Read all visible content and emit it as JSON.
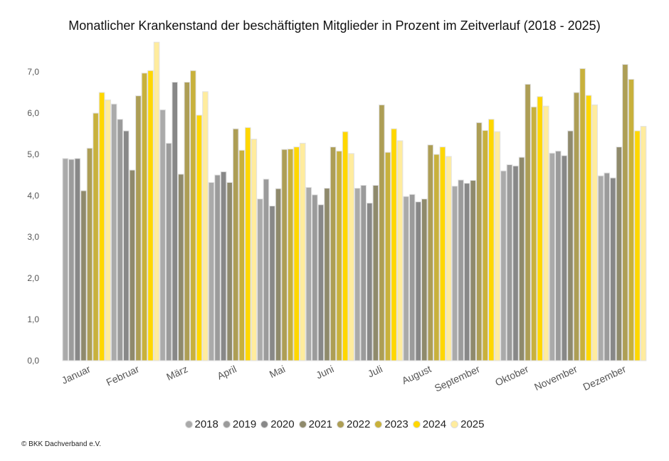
{
  "chart_data": {
    "type": "bar",
    "title": "Monatlicher Krankenstand der beschäftigten Mitglieder in Prozent im Zeitverlauf (2018 - 2025)",
    "xlabel": "",
    "ylabel": "",
    "ylim": [
      0,
      7.7
    ],
    "yticks": [
      "0,0",
      "1,0",
      "2,0",
      "3,0",
      "4,0",
      "5,0",
      "6,0",
      "7,0"
    ],
    "grid": false,
    "legend_position": "bottom",
    "categories": [
      "Januar",
      "Februar",
      "März",
      "April",
      "Mai",
      "Juni",
      "Juli",
      "August",
      "September",
      "Oktober",
      "November",
      "Dezember"
    ],
    "series": [
      {
        "name": "2018",
        "color": "#aaaaaa",
        "values": [
          4.9,
          6.22,
          6.08,
          4.32,
          3.92,
          4.2,
          4.18,
          3.98,
          4.23,
          4.6,
          5.03,
          4.48
        ]
      },
      {
        "name": "2019",
        "color": "#9b9b9b",
        "values": [
          4.88,
          5.85,
          5.27,
          4.5,
          4.4,
          4.02,
          4.25,
          4.03,
          4.38,
          4.75,
          5.08,
          4.55
        ]
      },
      {
        "name": "2020",
        "color": "#888888",
        "values": [
          4.9,
          5.57,
          6.75,
          4.58,
          3.75,
          3.78,
          3.82,
          3.85,
          4.3,
          4.72,
          4.97,
          4.43
        ]
      },
      {
        "name": "2021",
        "color": "#8f8a6c",
        "values": [
          4.12,
          4.62,
          4.52,
          4.32,
          4.17,
          4.18,
          4.25,
          3.92,
          4.37,
          4.93,
          5.57,
          5.18
        ]
      },
      {
        "name": "2022",
        "color": "#ad9e55",
        "values": [
          5.15,
          6.42,
          6.75,
          5.62,
          5.12,
          5.18,
          6.2,
          5.23,
          5.77,
          6.7,
          6.5,
          7.18
        ]
      },
      {
        "name": "2023",
        "color": "#c8b13c",
        "values": [
          6.0,
          6.97,
          7.03,
          5.1,
          5.13,
          5.08,
          5.05,
          5.0,
          5.58,
          6.15,
          7.08,
          6.82
        ]
      },
      {
        "name": "2024",
        "color": "#ffd700",
        "values": [
          6.5,
          7.03,
          5.95,
          5.65,
          5.18,
          5.55,
          5.62,
          5.18,
          5.85,
          6.4,
          6.43,
          5.57
        ]
      },
      {
        "name": "2025",
        "color": "#ffec9e",
        "values": [
          6.32,
          7.72,
          6.52,
          5.37,
          5.27,
          5.02,
          5.33,
          4.95,
          5.55,
          6.17,
          6.2,
          5.68
        ]
      }
    ]
  },
  "footer": {
    "copyright": "© BKK Dachverband e.V."
  }
}
